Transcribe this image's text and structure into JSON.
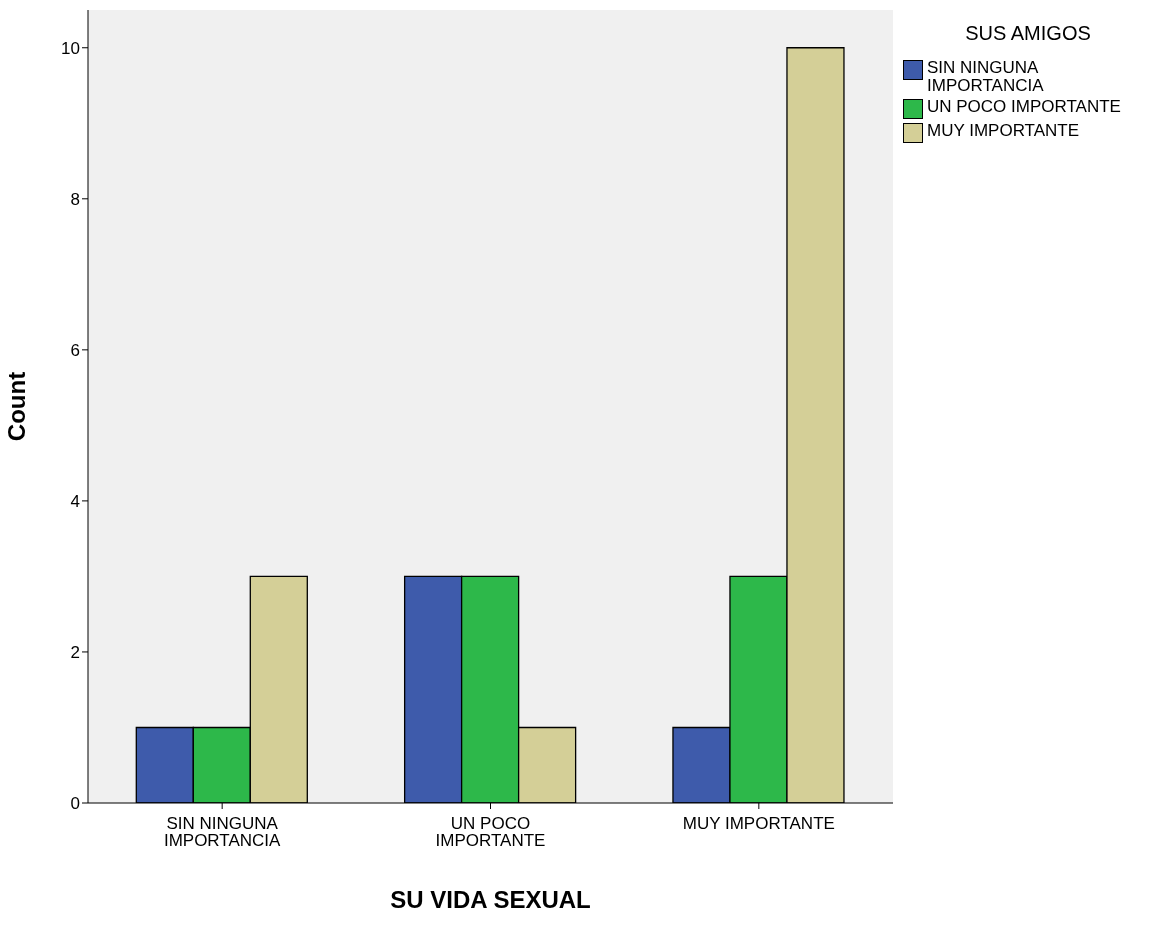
{
  "chart_data": {
    "type": "bar",
    "xlabel": "SU VIDA SEXUAL",
    "ylabel": "Count",
    "legend_title": "SUS AMIGOS",
    "categories": [
      "SIN NINGUNA IMPORTANCIA",
      "UN POCO IMPORTANTE",
      "MUY IMPORTANTE"
    ],
    "series": [
      {
        "name": "SIN NINGUNA IMPORTANCIA",
        "color": "#3e5bab",
        "values": [
          1,
          3,
          1
        ]
      },
      {
        "name": "UN POCO IMPORTANTE",
        "color": "#2db84a",
        "values": [
          1,
          3,
          3
        ]
      },
      {
        "name": "MUY IMPORTANTE",
        "color": "#d4cf97",
        "values": [
          3,
          1,
          10
        ]
      }
    ],
    "ylim": [
      0,
      10.5
    ],
    "yticks": [
      0,
      2,
      4,
      6,
      8,
      10
    ],
    "grid": false,
    "legend": "top right"
  }
}
